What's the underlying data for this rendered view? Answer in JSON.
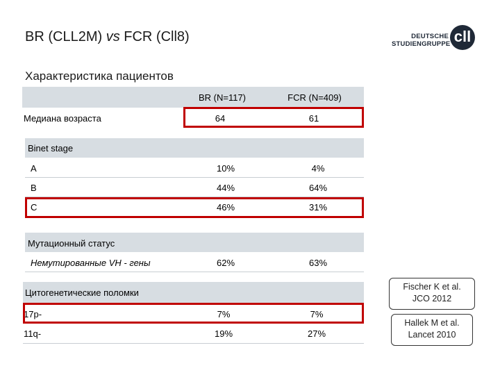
{
  "header": {
    "title_pre": "BR (CLL2M) ",
    "title_vs": "vs",
    "title_post": " FCR (Cll8)",
    "subtitle": "Характеристика пациентов"
  },
  "logo": {
    "line1": "DEUTSCHE",
    "line2": "STUDIENGRUPPE",
    "mark": "cll"
  },
  "table": {
    "col_br": "BR (N=117)",
    "col_fcr": "FCR (N=409)",
    "median_age": {
      "label": "Медиана возраста",
      "br": "64",
      "fcr": "61"
    },
    "binet": {
      "heading": "Binet stage",
      "rows": [
        {
          "label": "A",
          "br": "10%",
          "fcr": "4%"
        },
        {
          "label": "B",
          "br": "44%",
          "fcr": "64%"
        },
        {
          "label": "C",
          "br": "46%",
          "fcr": "31%"
        }
      ]
    },
    "mutation": {
      "heading": "Мутационный статус",
      "row": {
        "label": "Немутированные VH - гены",
        "br": "62%",
        "fcr": "63%"
      }
    },
    "cytogenetic": {
      "heading": "Цитогенетические поломки",
      "rows": [
        {
          "label": "17p-",
          "br": "7%",
          "fcr": "7%"
        },
        {
          "label": "11q-",
          "br": "19%",
          "fcr": "27%"
        }
      ]
    }
  },
  "notes": {
    "fischer": {
      "line1": "Fischer K et al.",
      "line2": "JCO 2012"
    },
    "hallek": {
      "line1": "Hallek M et al.",
      "line2": "Lancet 2010"
    }
  },
  "colors": {
    "band": "#d7dde2",
    "highlight": "#c00000"
  }
}
